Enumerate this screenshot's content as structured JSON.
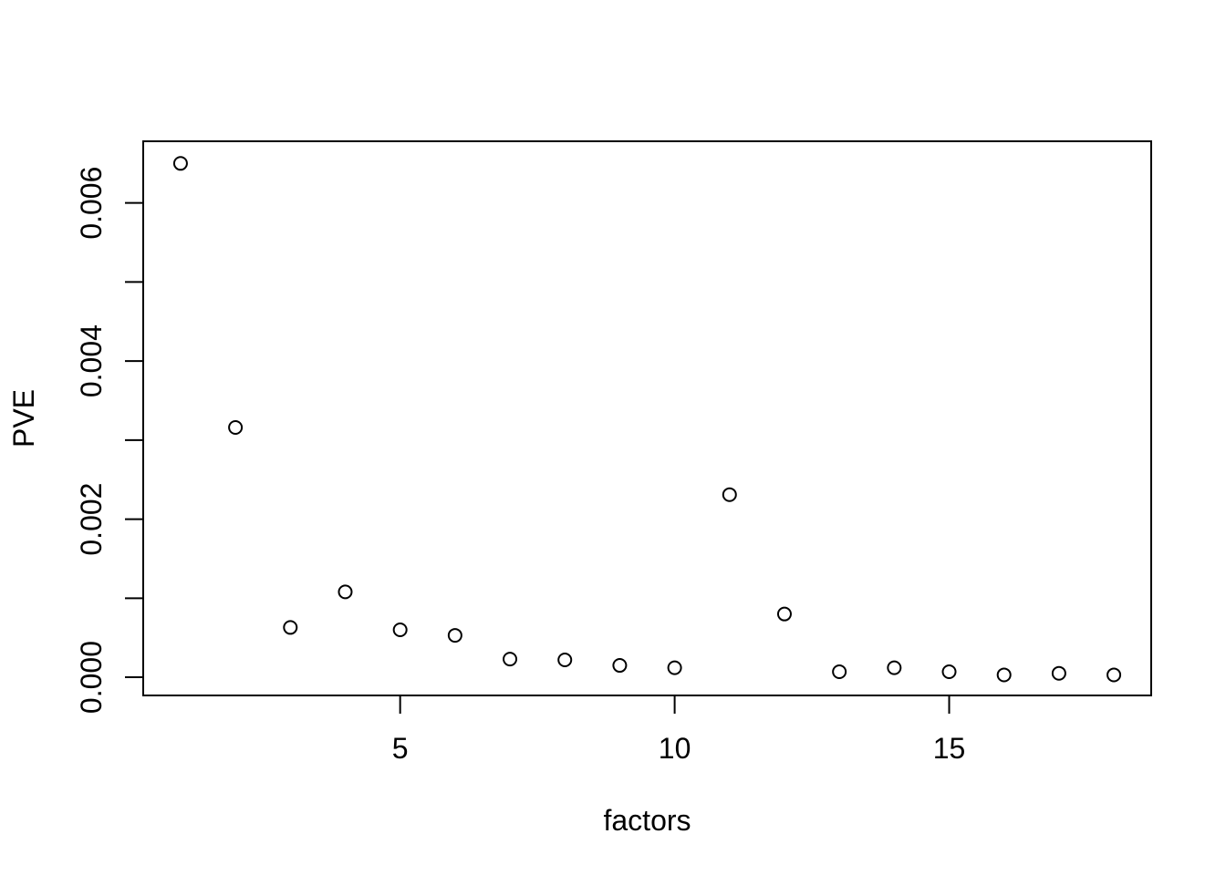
{
  "figure": {
    "background_color": "#ffffff",
    "foreground_color": "#000000"
  },
  "chart_data": {
    "type": "scatter",
    "title": "",
    "xlabel": "factors",
    "ylabel": "PVE",
    "x": [
      1,
      2,
      3,
      4,
      5,
      6,
      7,
      8,
      9,
      10,
      11,
      12,
      13,
      14,
      15,
      16,
      17,
      18
    ],
    "y": [
      0.0065,
      0.00316,
      0.00063,
      0.00108,
      0.0006,
      0.00053,
      0.00023,
      0.00022,
      0.00015,
      0.00012,
      0.00231,
      0.0008,
      7e-05,
      0.00012,
      7e-05,
      3e-05,
      5e-05,
      3e-05
    ],
    "series_name": "PVE",
    "xlim": [
      0.32,
      18.68
    ],
    "ylim": [
      -0.00023,
      0.00678
    ],
    "x_axis": {
      "ticks": [
        5,
        10,
        15
      ],
      "tick_labels": [
        "5",
        "10",
        "15"
      ]
    },
    "y_axis": {
      "ticks": [
        0,
        0.001,
        0.002,
        0.003,
        0.004,
        0.005,
        0.006
      ],
      "tick_labels": [
        "0.000",
        "",
        "0.002",
        "",
        "0.004",
        "",
        "0.006"
      ]
    },
    "grid": false,
    "legend": "none",
    "marker": {
      "shape": "open-circle",
      "radius": 7,
      "color": "#000000",
      "stroke_width": 2
    }
  }
}
